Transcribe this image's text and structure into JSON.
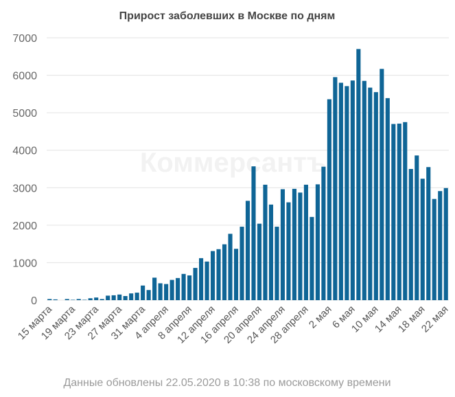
{
  "chart_data": {
    "type": "bar",
    "title": "Прирост заболевших в Москве по дням",
    "watermark": "Коммерсантъ",
    "footer": "Данные обновлены 22.05.2020 в 10:38 по московскому времени",
    "color": "#0f6596",
    "grid": true,
    "ylim": [
      0,
      7000
    ],
    "yticks": [
      0,
      1000,
      2000,
      3000,
      4000,
      5000,
      6000,
      7000
    ],
    "categories": [
      "15 марта",
      null,
      null,
      null,
      "19 марта",
      null,
      null,
      null,
      "23 марта",
      null,
      null,
      null,
      "27 марта",
      null,
      null,
      null,
      "31 марта",
      null,
      null,
      null,
      "4 апреля",
      null,
      null,
      null,
      "8 апреля",
      null,
      null,
      null,
      "12 апреля",
      null,
      null,
      null,
      "16 апреля",
      null,
      null,
      null,
      "20 апреля",
      null,
      null,
      null,
      "24 апреля",
      null,
      null,
      null,
      "28 апреля",
      null,
      null,
      null,
      "2 мая",
      null,
      null,
      null,
      "6 мая",
      null,
      null,
      null,
      "10 мая",
      null,
      null,
      null,
      "14 мая",
      null,
      null,
      null,
      "18 мая",
      null,
      null,
      null,
      "22 мая"
    ],
    "values": [
      30,
      20,
      0,
      30,
      10,
      30,
      10,
      50,
      70,
      30,
      120,
      130,
      150,
      110,
      180,
      200,
      390,
      270,
      600,
      450,
      430,
      540,
      590,
      700,
      660,
      860,
      1120,
      1030,
      1310,
      1360,
      1490,
      1770,
      1370,
      1960,
      2650,
      3570,
      2040,
      3080,
      2550,
      1960,
      2960,
      2610,
      2970,
      2870,
      3080,
      2220,
      3090,
      3560,
      5360,
      5950,
      5800,
      5710,
      5860,
      6700,
      5850,
      5670,
      5550,
      6170,
      5390,
      4700,
      4710,
      4750,
      3500,
      3860,
      3240,
      3550,
      2700,
      2910,
      2990
    ]
  }
}
